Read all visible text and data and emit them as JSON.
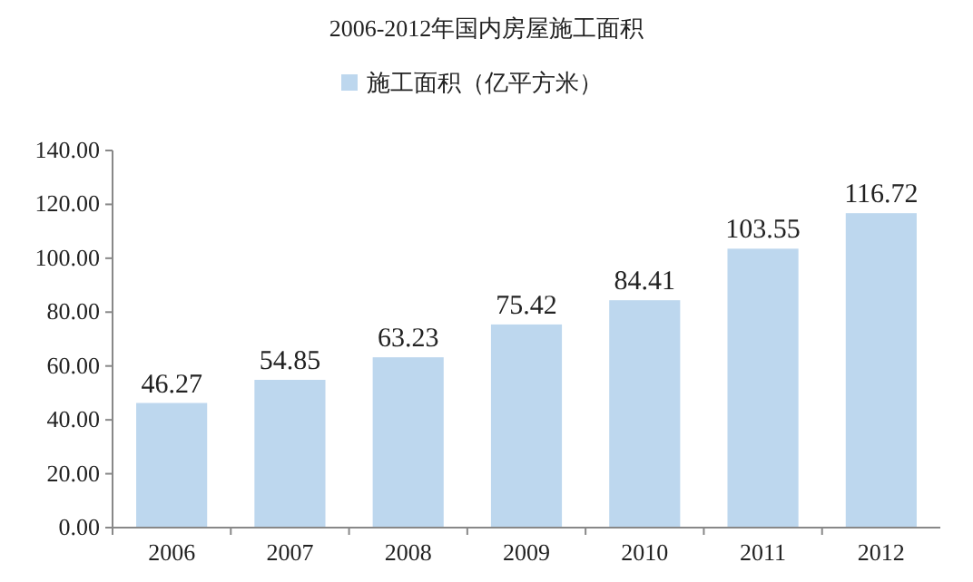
{
  "chart_data": {
    "type": "bar",
    "title": "2006-2012年国内房屋施工面积",
    "categories": [
      "2006",
      "2007",
      "2008",
      "2009",
      "2010",
      "2011",
      "2012"
    ],
    "series": [
      {
        "name": "施工面积（亿平方米）",
        "color": "#bdd7ee",
        "values": [
          46.27,
          54.85,
          63.23,
          75.42,
          84.41,
          103.55,
          116.72
        ]
      }
    ],
    "ylim": [
      0,
      140
    ],
    "yticks": [
      {
        "value": 0,
        "label": "0.00"
      },
      {
        "value": 20,
        "label": "20.00"
      },
      {
        "value": 40,
        "label": "40.00"
      },
      {
        "value": 60,
        "label": "60.00"
      },
      {
        "value": 80,
        "label": "80.00"
      },
      {
        "value": 100,
        "label": "100.00"
      },
      {
        "value": 120,
        "label": "120.00"
      },
      {
        "value": 140,
        "label": "140.00"
      }
    ],
    "grid": false,
    "legend": "top",
    "data_labels": true
  }
}
